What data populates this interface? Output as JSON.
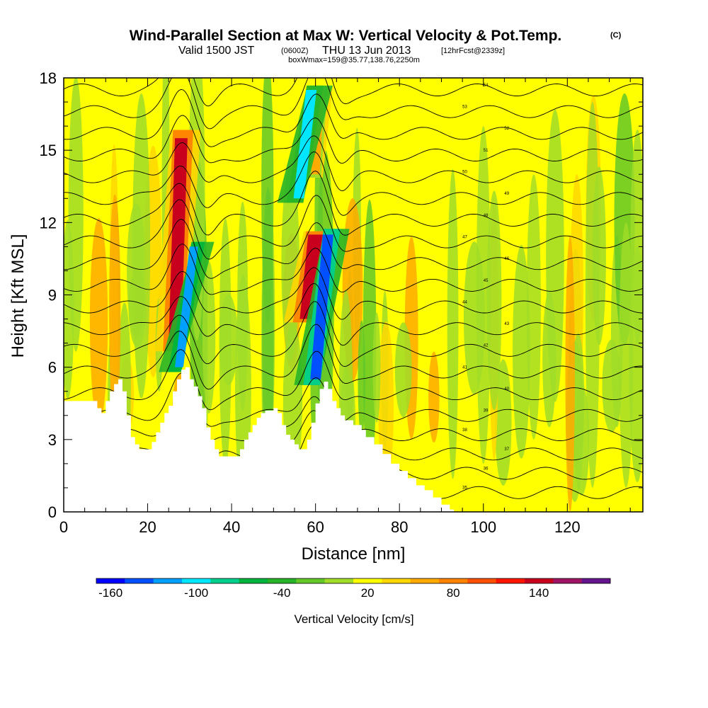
{
  "title": {
    "main": "Wind-Parallel Section at Max W: Vertical Velocity & Pot.Temp.",
    "copyright": "(C)",
    "valid_prefix": "Valid 1500 JST",
    "valid_utc": "(0600Z)",
    "valid_date": "THU 13 Jun 2013",
    "forecast": "[12hrFcst@2339z]",
    "box_info": "boxWmax=159@35.77,138.76,2250m"
  },
  "chart_data": {
    "type": "heatmap",
    "xlabel": "Distance [nm]",
    "ylabel": "Height [Kft MSL]",
    "xlim": [
      0,
      138
    ],
    "ylim": [
      0,
      18
    ],
    "x_ticks": [
      "0",
      "20",
      "40",
      "60",
      "80",
      "100",
      "120"
    ],
    "y_ticks": [
      "0",
      "3",
      "6",
      "9",
      "12",
      "15",
      "18"
    ],
    "legend": "bottom",
    "colorbar": {
      "label": "Vertical Velocity [cm/s]",
      "tick_labels": [
        "-160",
        "-100",
        "-40",
        "20",
        "80",
        "140"
      ],
      "colors": [
        "#0000ff",
        "#0050ff",
        "#00a0ff",
        "#00e6ff",
        "#00d08c",
        "#00b43c",
        "#28b428",
        "#64c828",
        "#a0dc28",
        "#ffff00",
        "#ffd700",
        "#ffaa00",
        "#ff8200",
        "#ff5000",
        "#ff1400",
        "#c8001e",
        "#a01464",
        "#64148c"
      ]
    },
    "terrain": [
      [
        0,
        4.6
      ],
      [
        7,
        4.6
      ],
      [
        8,
        4.3
      ],
      [
        9,
        4.1
      ],
      [
        10,
        4.6
      ],
      [
        11,
        5.0
      ],
      [
        12,
        5.3
      ],
      [
        13,
        5.5
      ],
      [
        14,
        5.0
      ],
      [
        15,
        4.0
      ],
      [
        16,
        3.1
      ],
      [
        17,
        2.8
      ],
      [
        18,
        2.6
      ],
      [
        20,
        2.6
      ],
      [
        21,
        2.9
      ],
      [
        22,
        3.3
      ],
      [
        23,
        3.7
      ],
      [
        24,
        4.1
      ],
      [
        25,
        4.4
      ],
      [
        26,
        5.0
      ],
      [
        27,
        5.5
      ],
      [
        28,
        5.9
      ],
      [
        29,
        6.0
      ],
      [
        30,
        5.5
      ],
      [
        31,
        5.2
      ],
      [
        32,
        4.8
      ],
      [
        33,
        4.3
      ],
      [
        34,
        3.5
      ],
      [
        35,
        3.0
      ],
      [
        36,
        2.6
      ],
      [
        37,
        2.3
      ],
      [
        41,
        2.3
      ],
      [
        42,
        2.6
      ],
      [
        43,
        3.0
      ],
      [
        44,
        3.3
      ],
      [
        45,
        3.6
      ],
      [
        46,
        3.9
      ],
      [
        47,
        4.1
      ],
      [
        48,
        4.2
      ],
      [
        50,
        4.3
      ],
      [
        51,
        4.1
      ],
      [
        52,
        3.6
      ],
      [
        53,
        3.2
      ],
      [
        54,
        3.0
      ],
      [
        55,
        2.8
      ],
      [
        56,
        2.6
      ],
      [
        57,
        2.6
      ],
      [
        58,
        3.0
      ],
      [
        59,
        3.7
      ],
      [
        60,
        4.5
      ],
      [
        61,
        5.1
      ],
      [
        62,
        5.4
      ],
      [
        63,
        5.1
      ],
      [
        64,
        4.6
      ],
      [
        65,
        4.3
      ],
      [
        66,
        4.0
      ],
      [
        67,
        3.8
      ],
      [
        69,
        3.6
      ],
      [
        71,
        3.4
      ],
      [
        72,
        3.1
      ],
      [
        74,
        2.8
      ],
      [
        76,
        2.4
      ],
      [
        78,
        2.0
      ],
      [
        80,
        1.7
      ],
      [
        82,
        1.4
      ],
      [
        84,
        1.1
      ],
      [
        86,
        0.9
      ],
      [
        88,
        0.6
      ],
      [
        90,
        0.3
      ],
      [
        92,
        0.1
      ],
      [
        93,
        0.0
      ]
    ],
    "updrafts": [
      {
        "x_top": 28,
        "y_top": 15.5,
        "x_bot": 26.5,
        "y_bot": 7,
        "w": 3,
        "level": 140
      },
      {
        "x_top": 60,
        "y_top": 11.5,
        "x_bot": 58,
        "y_bot": 8,
        "w": 3.5,
        "level": 140
      },
      {
        "x_top": 61,
        "y_top": 17.5,
        "x_bot": 60,
        "y_bot": 14,
        "w": 2,
        "level": 60
      }
    ],
    "downdrafts": [
      {
        "x_top": 31,
        "y_top": 11,
        "x_bot": 27.5,
        "y_bot": 6,
        "w": 2,
        "level": -120
      },
      {
        "x_top": 63,
        "y_top": 11.5,
        "x_bot": 60,
        "y_bot": 5.5,
        "w": 2.5,
        "level": -140
      },
      {
        "x_top": 59,
        "y_top": 17.5,
        "x_bot": 56,
        "y_bot": 13,
        "w": 2.5,
        "level": -100
      }
    ],
    "isentropes": [
      {
        "base": 0.8,
        "label": "35"
      },
      {
        "base": 1.6,
        "label": "36"
      },
      {
        "base": 2.4,
        "label": "37"
      },
      {
        "base": 3.2,
        "label": "38"
      },
      {
        "base": 4.0,
        "label": "39"
      },
      {
        "base": 4.9,
        "label": "40"
      },
      {
        "base": 5.8,
        "label": "41"
      },
      {
        "base": 6.7,
        "label": "42"
      },
      {
        "base": 7.6,
        "label": "43"
      },
      {
        "base": 8.5,
        "label": "44"
      },
      {
        "base": 9.4,
        "label": "45"
      },
      {
        "base": 10.3,
        "label": "46"
      },
      {
        "base": 11.2,
        "label": "47"
      },
      {
        "base": 12.1,
        "label": "48"
      },
      {
        "base": 13.0,
        "label": "49"
      },
      {
        "base": 13.9,
        "label": "50"
      },
      {
        "base": 14.8,
        "label": "51"
      },
      {
        "base": 15.7,
        "label": "52"
      },
      {
        "base": 16.6,
        "label": "53"
      },
      {
        "base": 17.5,
        "label": "54"
      }
    ]
  }
}
